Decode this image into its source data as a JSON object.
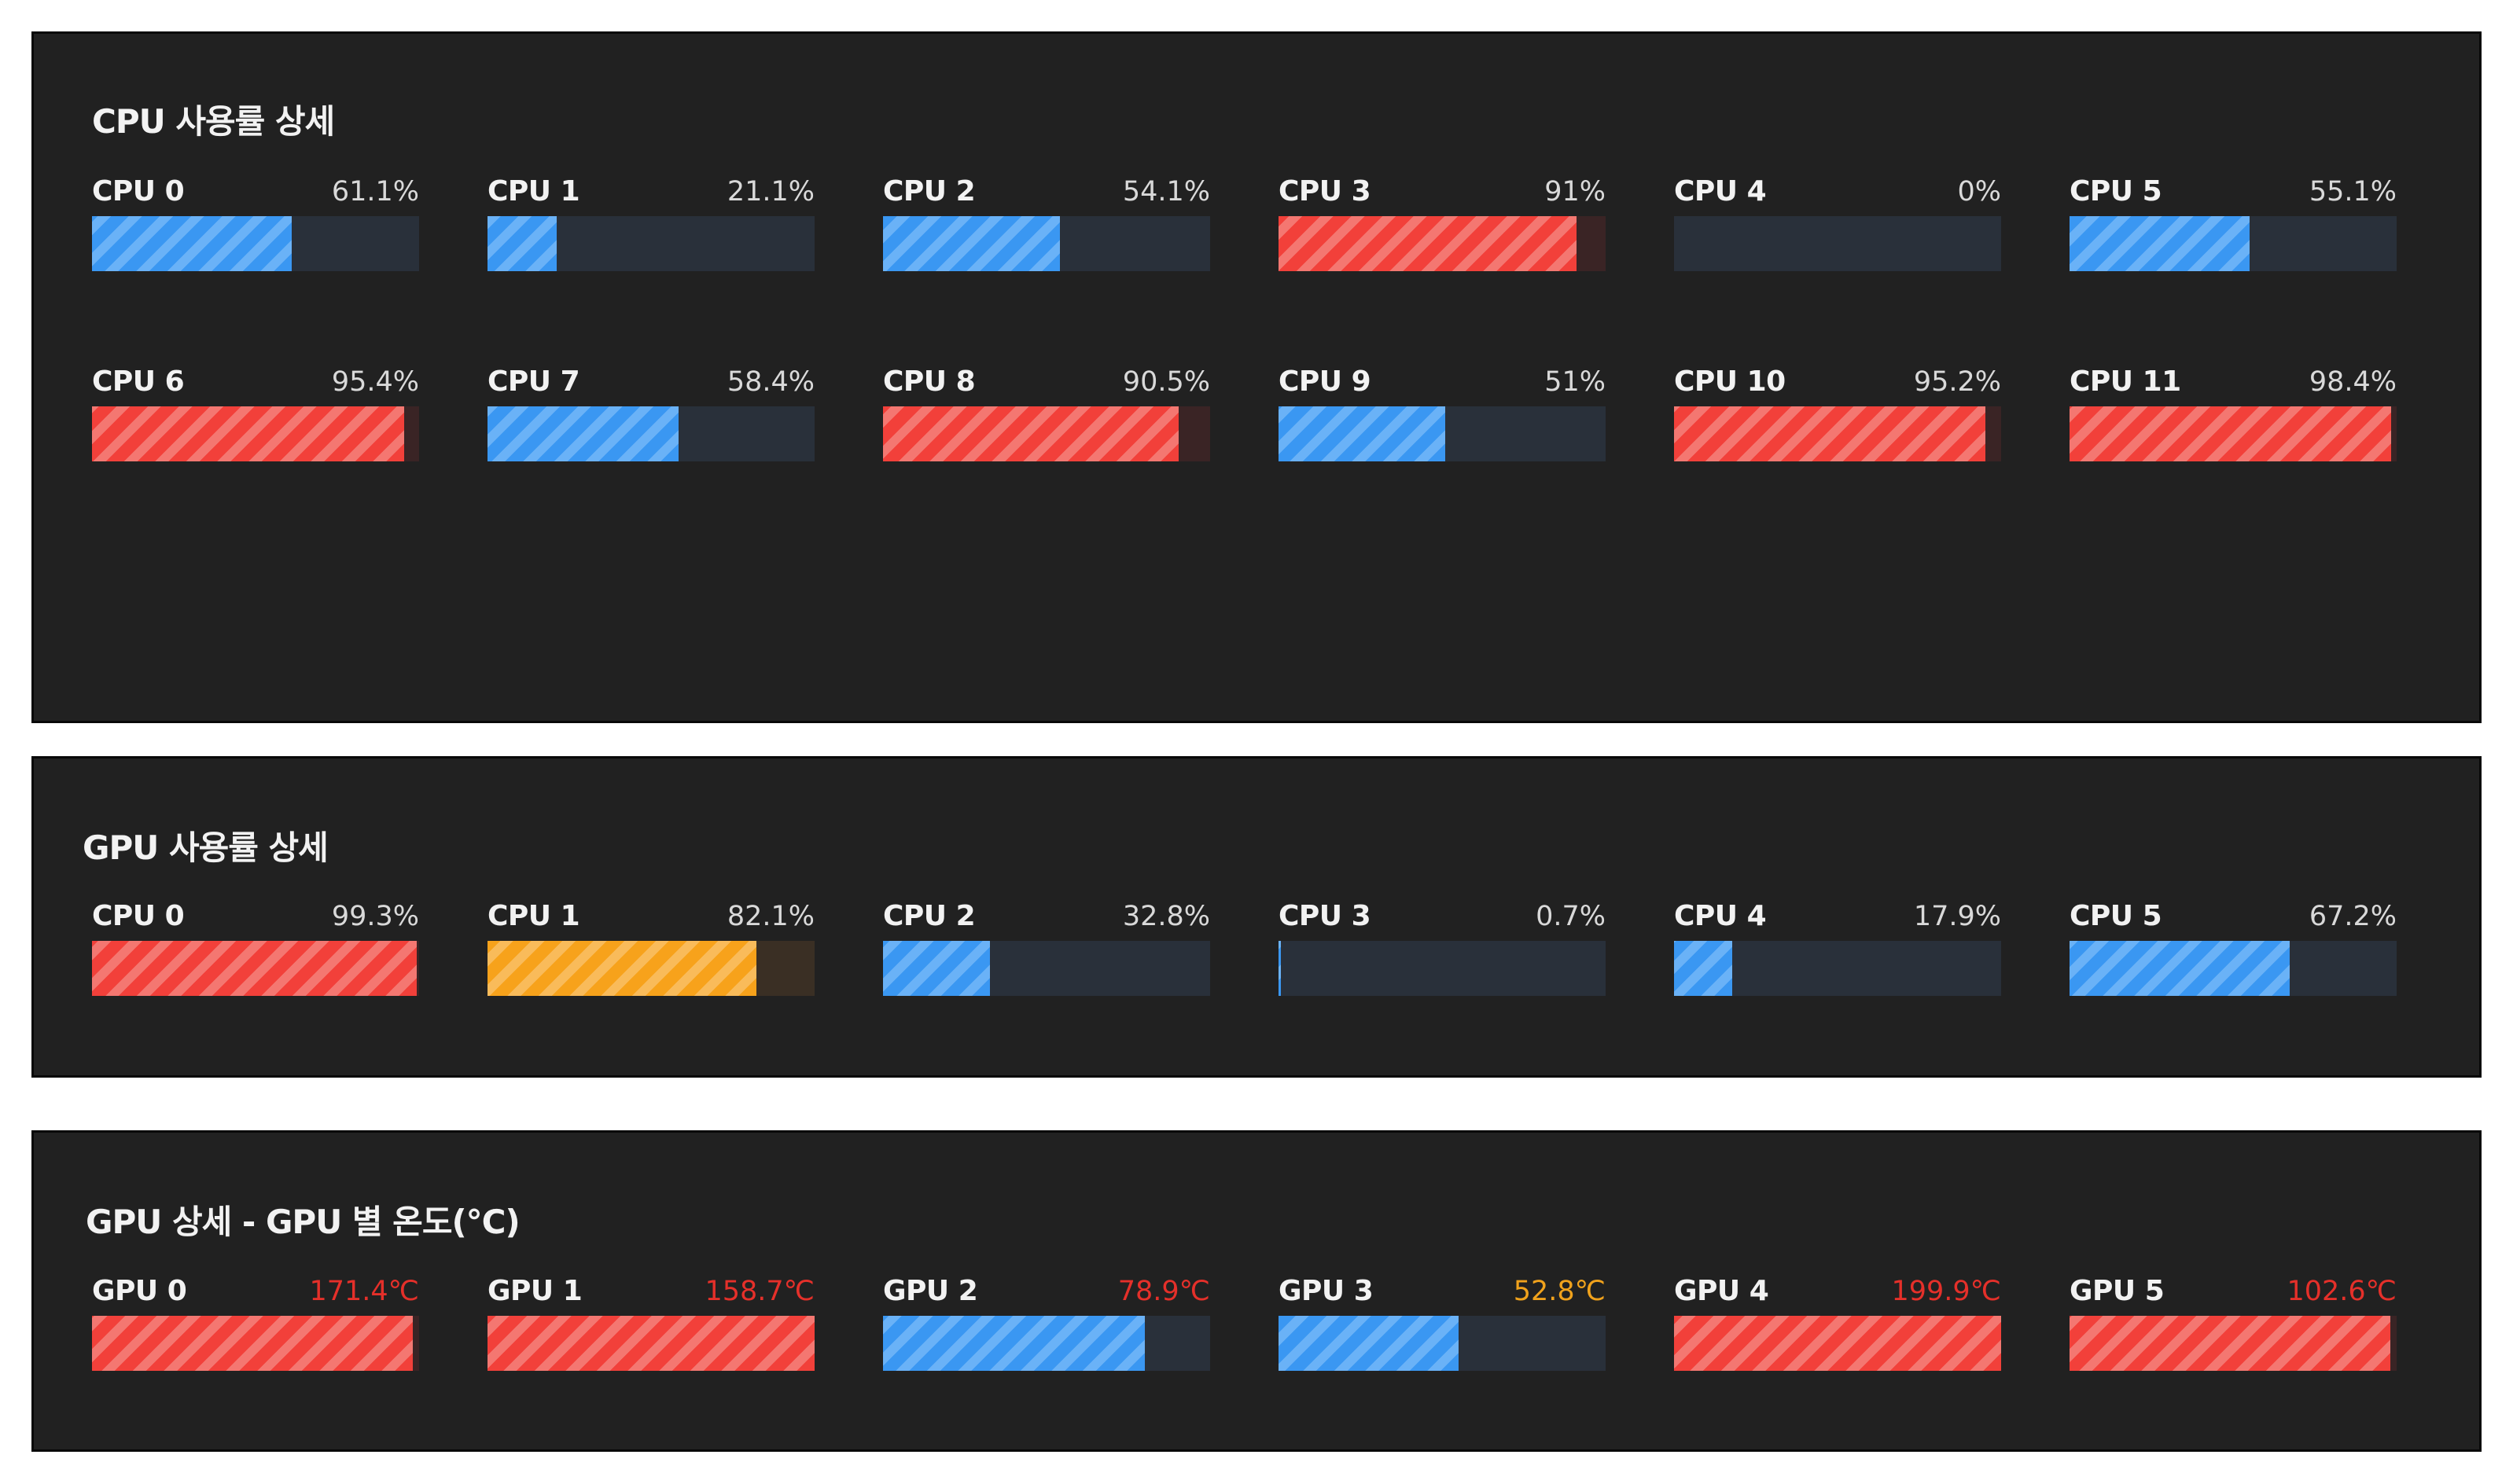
{
  "colors": {
    "panel_bg": "#212121",
    "track": "#29303a",
    "fill_blue": "#3a97f2",
    "fill_red": "#f2403a",
    "fill_orange": "#f7a21b",
    "text_hot": "#e5302a",
    "text_warm": "#f0a21c"
  },
  "cpu_panel": {
    "title": "CPU 사용률 상세",
    "items": [
      {
        "label": "CPU 0",
        "value": "61.1%",
        "level": 61.1,
        "status": "normal"
      },
      {
        "label": "CPU 1",
        "value": "21.1%",
        "level": 21.1,
        "status": "normal"
      },
      {
        "label": "CPU 2",
        "value": "54.1%",
        "level": 54.1,
        "status": "normal"
      },
      {
        "label": "CPU 3",
        "value": "91%",
        "level": 91,
        "status": "hot"
      },
      {
        "label": "CPU 4",
        "value": "0%",
        "level": 0,
        "status": "normal"
      },
      {
        "label": "CPU 5",
        "value": "55.1%",
        "level": 55.1,
        "status": "normal"
      },
      {
        "label": "CPU 6",
        "value": "95.4%",
        "level": 95.4,
        "status": "hot"
      },
      {
        "label": "CPU 7",
        "value": "58.4%",
        "level": 58.4,
        "status": "normal"
      },
      {
        "label": "CPU 8",
        "value": "90.5%",
        "level": 90.5,
        "status": "hot"
      },
      {
        "label": "CPU 9",
        "value": "51%",
        "level": 51,
        "status": "normal"
      },
      {
        "label": "CPU 10",
        "value": "95.2%",
        "level": 95.2,
        "status": "hot"
      },
      {
        "label": "CPU 11",
        "value": "98.4%",
        "level": 98.4,
        "status": "hot"
      }
    ]
  },
  "gpu_panel": {
    "title": "GPU 사용률 상세",
    "items": [
      {
        "label": "CPU 0",
        "value": "99.3%",
        "level": 99.3,
        "status": "hot"
      },
      {
        "label": "CPU 1",
        "value": "82.1%",
        "level": 82.1,
        "status": "warm"
      },
      {
        "label": "CPU 2",
        "value": "32.8%",
        "level": 32.8,
        "status": "normal"
      },
      {
        "label": "CPU 3",
        "value": "0.7%",
        "level": 0.7,
        "status": "normal"
      },
      {
        "label": "CPU 4",
        "value": "17.9%",
        "level": 17.9,
        "status": "normal"
      },
      {
        "label": "CPU 5",
        "value": "67.2%",
        "level": 67.2,
        "status": "normal"
      }
    ]
  },
  "temp_panel": {
    "title": "GPU 상세 - GPU 별 온도(℃)",
    "items": [
      {
        "label": "GPU 0",
        "value": "171.4℃",
        "level": 98,
        "status": "hot",
        "text_status": "hot"
      },
      {
        "label": "GPU 1",
        "value": "158.7℃",
        "level": 100,
        "status": "hot",
        "text_status": "hot"
      },
      {
        "label": "GPU 2",
        "value": "78.9℃",
        "level": 80,
        "status": "normal",
        "text_status": "hot"
      },
      {
        "label": "GPU 3",
        "value": "52.8℃",
        "level": 55,
        "status": "normal",
        "text_status": "warm"
      },
      {
        "label": "GPU 4",
        "value": "199.9℃",
        "level": 100,
        "status": "hot",
        "text_status": "hot"
      },
      {
        "label": "GPU 5",
        "value": "102.6℃",
        "level": 98,
        "status": "hot",
        "text_status": "hot"
      }
    ]
  }
}
